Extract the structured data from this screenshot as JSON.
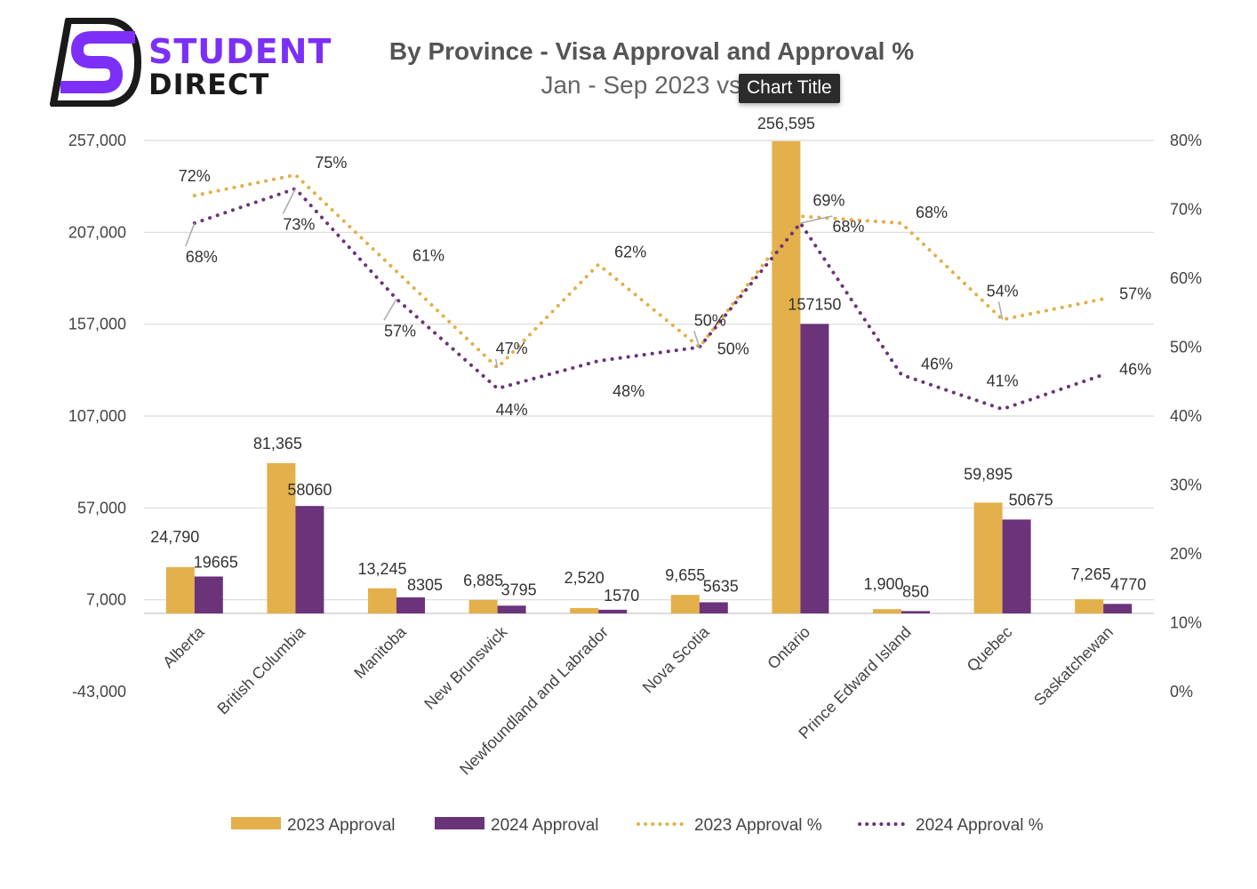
{
  "brand": {
    "line1": "STUDENT",
    "line2": "DIRECT",
    "primary_color": "#7B2FF7",
    "dark_color": "#1a1a1a"
  },
  "tooltip": "Chart Title",
  "chart_data": {
    "type": "bar",
    "title": "By Province - Visa Approval and Approval %",
    "subtitle": "Jan - Sep 2023 vs 2",
    "categories": [
      "Alberta",
      "British Columbia",
      "Manitoba",
      "New Brunswick",
      "Newfoundland and Labrador",
      "Nova Scotia",
      "Ontario",
      "Prince Edward Island",
      "Quebec",
      "Saskatchewan"
    ],
    "series": [
      {
        "name": "2023 Approval",
        "kind": "bar",
        "axis": "left",
        "color": "#E3B04B",
        "values": [
          24790,
          81365,
          13245,
          6885,
          2520,
          9655,
          256595,
          1900,
          59895,
          7265
        ],
        "labels": [
          "24,790",
          "81,365",
          "13,245",
          "6,885",
          "2,520",
          "9,655",
          "256,595",
          "1,900",
          "59,895",
          "7,265"
        ]
      },
      {
        "name": "2024 Approval",
        "kind": "bar",
        "axis": "left",
        "color": "#6B337A",
        "values": [
          19665,
          58060,
          8305,
          3795,
          1570,
          5635,
          157150,
          850,
          50675,
          4770
        ],
        "labels": [
          "19665",
          "58060",
          "8305",
          "3795",
          "1570",
          "5635",
          "157150",
          "850",
          "50675",
          "4770"
        ]
      },
      {
        "name": "2023 Approval %",
        "kind": "line",
        "style": "dotted",
        "axis": "right",
        "color": "#E3B04B",
        "values": [
          72,
          75,
          61,
          47,
          62,
          50,
          69,
          68,
          54,
          57
        ],
        "labels": [
          "72%",
          "75%",
          "61%",
          "47%",
          "62%",
          "50%",
          "69%",
          "68%",
          "54%",
          "57%"
        ]
      },
      {
        "name": "2024 Approval %",
        "kind": "line",
        "style": "dotted",
        "axis": "right",
        "color": "#6B337A",
        "values": [
          68,
          73,
          57,
          44,
          48,
          50,
          68,
          46,
          41,
          46
        ],
        "labels": [
          "68%",
          "73%",
          "57%",
          "44%",
          "48%",
          "50%",
          "68%",
          "46%",
          "41%",
          "46%"
        ]
      }
    ],
    "y_left": {
      "ticks": [
        257000,
        207000,
        157000,
        107000,
        57000,
        7000,
        -43000
      ],
      "tick_labels": [
        "257,000",
        "207,000",
        "157,000",
        "107,000",
        "57,000",
        "7,000",
        "-43,000"
      ],
      "range": [
        -43000,
        257000
      ]
    },
    "y_right": {
      "ticks": [
        80,
        70,
        60,
        50,
        40,
        30,
        20,
        10,
        0
      ],
      "tick_labels": [
        "80%",
        "70%",
        "60%",
        "50%",
        "40%",
        "30%",
        "20%",
        "10%",
        "0%"
      ],
      "range": [
        0,
        80
      ],
      "unit": "%"
    },
    "grid": true,
    "legend_position": "bottom"
  }
}
